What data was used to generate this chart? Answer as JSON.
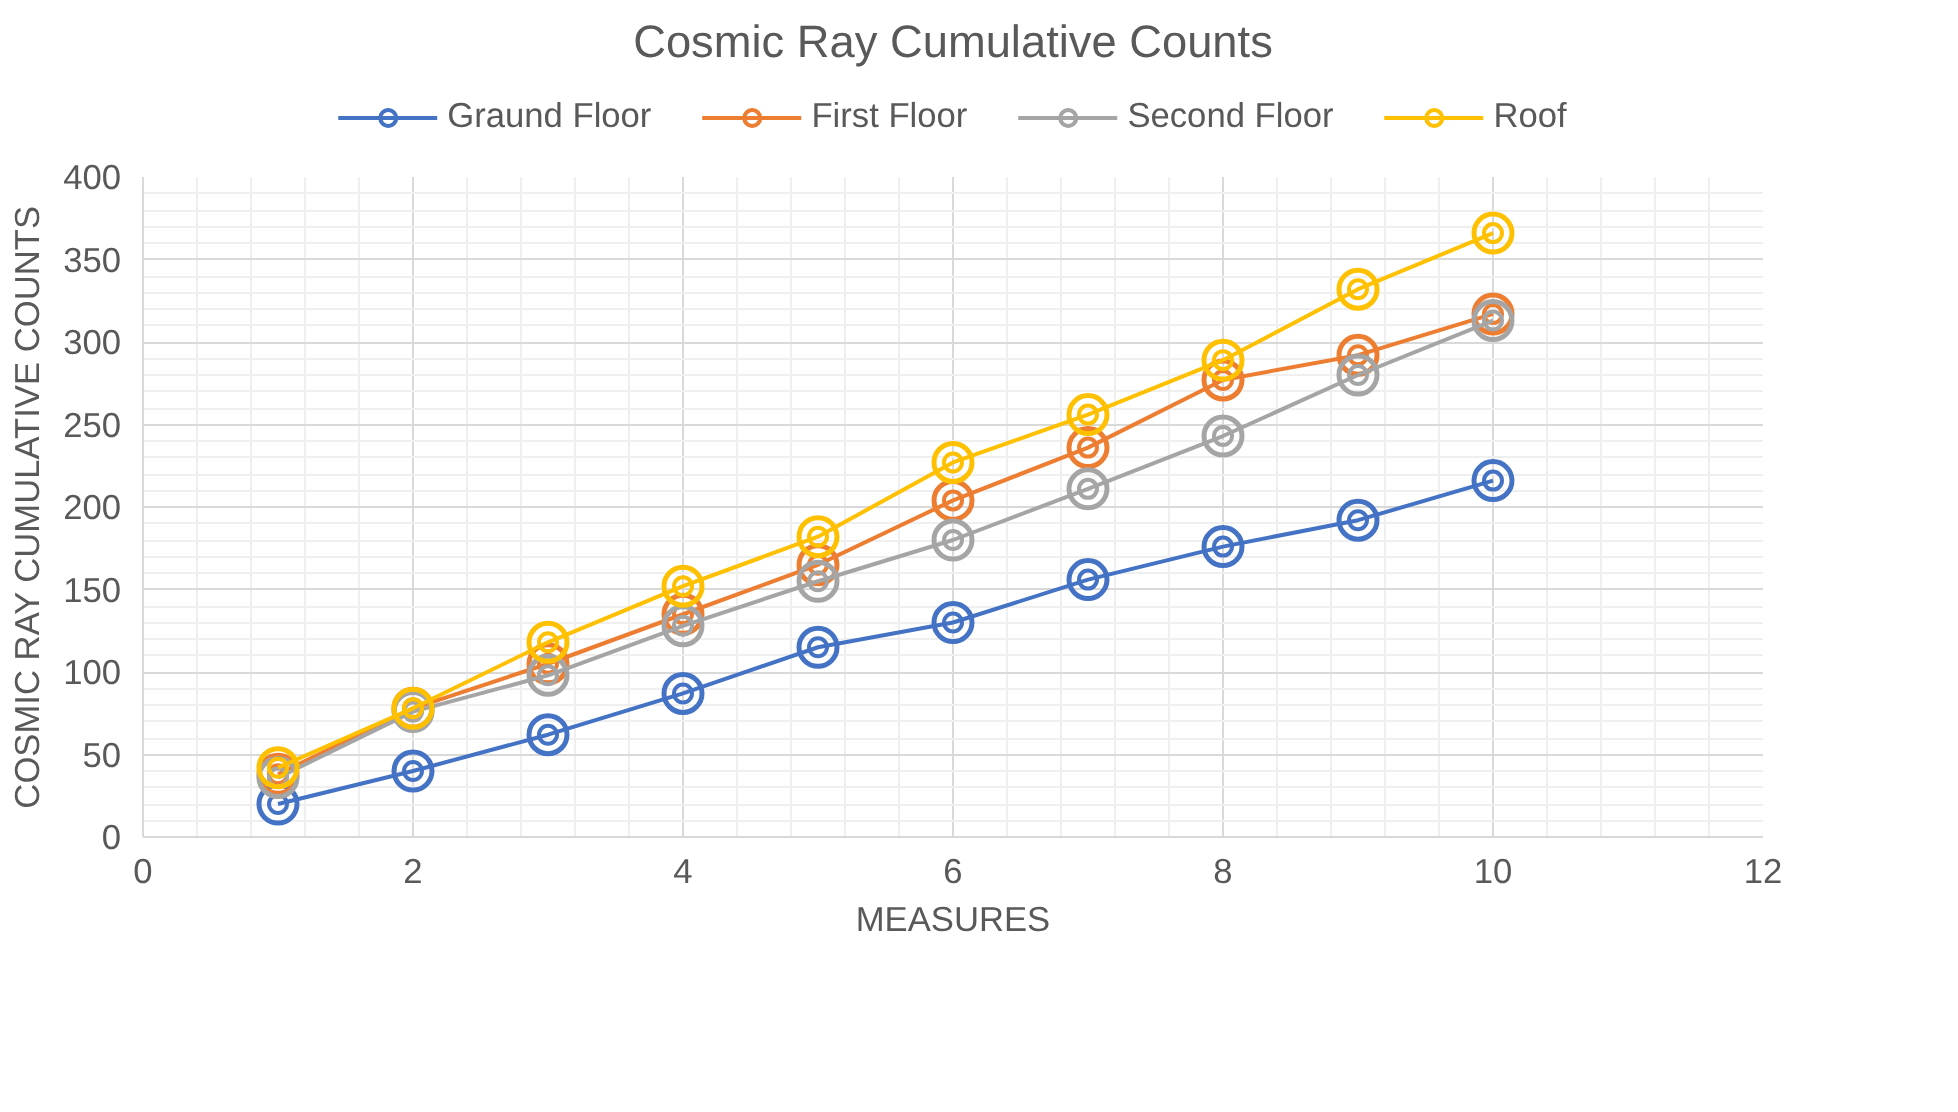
{
  "chart_data": {
    "type": "line",
    "title": "Cosmic Ray Cumulative Counts",
    "xlabel": "MEASURES",
    "ylabel": "COSMIC RAY CUMULATIVE COUNTS",
    "x": [
      1,
      2,
      3,
      4,
      5,
      6,
      7,
      8,
      9,
      10
    ],
    "series": [
      {
        "name": "Graund Floor",
        "color": "#4472c4",
        "values": [
          20,
          40,
          62,
          87,
          115,
          130,
          156,
          176,
          192,
          216
        ]
      },
      {
        "name": "First Floor",
        "color": "#ed7d31",
        "values": [
          38,
          78,
          105,
          135,
          165,
          204,
          236,
          277,
          292,
          317
        ]
      },
      {
        "name": "Second Floor",
        "color": "#a5a5a5",
        "values": [
          36,
          76,
          98,
          128,
          155,
          180,
          211,
          243,
          280,
          313
        ]
      },
      {
        "name": "Roof",
        "color": "#ffc000",
        "values": [
          42,
          78,
          118,
          152,
          182,
          227,
          256,
          289,
          332,
          366
        ]
      }
    ],
    "xlim": [
      0,
      12
    ],
    "xticks": [
      0,
      2,
      4,
      6,
      8,
      10,
      12
    ],
    "ylim": [
      0,
      400
    ],
    "yticks": [
      0,
      50,
      100,
      150,
      200,
      250,
      300,
      350,
      400
    ],
    "grid": true,
    "legend": "top",
    "marker": "circle",
    "line_style": "solid"
  }
}
